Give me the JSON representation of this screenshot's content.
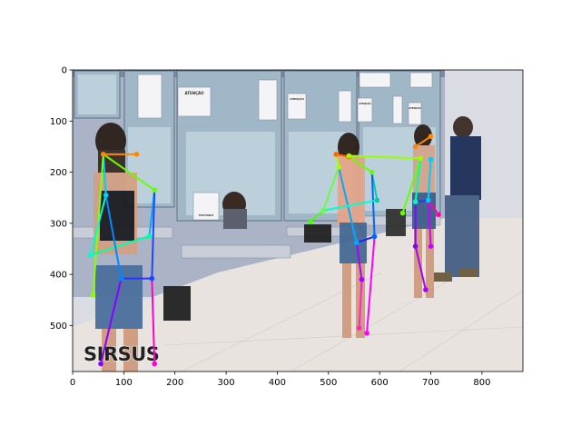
{
  "chart_data": {
    "type": "image-with-pose-overlay",
    "xlim": [
      0,
      880
    ],
    "ylim": [
      590,
      0
    ],
    "x_ticks": [
      0,
      100,
      200,
      300,
      400,
      500,
      600,
      700,
      800
    ],
    "y_ticks": [
      0,
      100,
      200,
      300,
      400,
      500
    ],
    "grid": false,
    "photo": {
      "posters": [
        "ATENÇÃO",
        "ATENÇÃO",
        "ATENÇÃO",
        "FECHADO",
        "ATENÇÃO"
      ],
      "logo": "SIRSUS"
    },
    "keypoint_color": "#1f1fff",
    "skeletons": [
      {
        "keypoints": [
          [
            60,
            165
          ],
          [
            125,
            165
          ],
          [
            65,
            245
          ],
          [
            160,
            235
          ],
          [
            95,
            408
          ],
          [
            155,
            408
          ],
          [
            40,
            440
          ],
          [
            35,
            362
          ],
          [
            150,
            325
          ],
          [
            55,
            575
          ],
          [
            160,
            575
          ]
        ],
        "edges": [
          {
            "from": 0,
            "to": 1,
            "color": "#ff8800"
          },
          {
            "from": 0,
            "to": 2,
            "color": "#00ccff"
          },
          {
            "from": 0,
            "to": 3,
            "color": "#66ff00"
          },
          {
            "from": 0,
            "to": 6,
            "color": "#88ff00"
          },
          {
            "from": 2,
            "to": 7,
            "color": "#00ffcc"
          },
          {
            "from": 7,
            "to": 8,
            "color": "#00ffaa"
          },
          {
            "from": 3,
            "to": 8,
            "color": "#00aaff"
          },
          {
            "from": 2,
            "to": 4,
            "color": "#0088ff"
          },
          {
            "from": 3,
            "to": 5,
            "color": "#2244ff"
          },
          {
            "from": 4,
            "to": 5,
            "color": "#3333ff"
          },
          {
            "from": 4,
            "to": 9,
            "color": "#8800ff"
          },
          {
            "from": 5,
            "to": 10,
            "color": "#ff00cc"
          }
        ]
      },
      {
        "keypoints": [
          [
            515,
            165
          ],
          [
            540,
            170
          ],
          [
            520,
            190
          ],
          [
            585,
            200
          ],
          [
            595,
            255
          ],
          [
            465,
            297
          ],
          [
            490,
            275
          ],
          [
            555,
            338
          ],
          [
            590,
            326
          ],
          [
            565,
            410
          ],
          [
            560,
            505
          ],
          [
            575,
            515
          ]
        ],
        "edges": [
          {
            "from": 0,
            "to": 1,
            "color": "#ff6600"
          },
          {
            "from": 0,
            "to": 2,
            "color": "#aaff00"
          },
          {
            "from": 1,
            "to": 3,
            "color": "#66ff00"
          },
          {
            "from": 2,
            "to": 6,
            "color": "#66ff44"
          },
          {
            "from": 6,
            "to": 5,
            "color": "#44ff00"
          },
          {
            "from": 3,
            "to": 4,
            "color": "#00ccaa"
          },
          {
            "from": 2,
            "to": 7,
            "color": "#00aaff"
          },
          {
            "from": 3,
            "to": 8,
            "color": "#0066ff"
          },
          {
            "from": 7,
            "to": 8,
            "color": "#2222ff"
          },
          {
            "from": 7,
            "to": 9,
            "color": "#aa00ff"
          },
          {
            "from": 8,
            "to": 11,
            "color": "#ff00ff"
          },
          {
            "from": 9,
            "to": 10,
            "color": "#ff22cc"
          },
          {
            "from": 4,
            "to": 6,
            "color": "#00ffcc"
          }
        ]
      },
      {
        "keypoints": [
          [
            670,
            150
          ],
          [
            700,
            130
          ],
          [
            540,
            168
          ],
          [
            680,
            173
          ],
          [
            700,
            175
          ],
          [
            645,
            280
          ],
          [
            670,
            258
          ],
          [
            695,
            255
          ],
          [
            715,
            283
          ],
          [
            670,
            345
          ],
          [
            700,
            345
          ],
          [
            690,
            430
          ]
        ],
        "edges": [
          {
            "from": 0,
            "to": 1,
            "color": "#ff8800"
          },
          {
            "from": 2,
            "to": 3,
            "color": "#99ff00"
          },
          {
            "from": 3,
            "to": 5,
            "color": "#66ff00"
          },
          {
            "from": 4,
            "to": 7,
            "color": "#00ccff"
          },
          {
            "from": 3,
            "to": 6,
            "color": "#00ffaa"
          },
          {
            "from": 6,
            "to": 7,
            "color": "#3333ff"
          },
          {
            "from": 6,
            "to": 9,
            "color": "#8800ff"
          },
          {
            "from": 7,
            "to": 10,
            "color": "#cc00ff"
          },
          {
            "from": 7,
            "to": 8,
            "color": "#ff00aa"
          },
          {
            "from": 9,
            "to": 11,
            "color": "#aa00ff"
          }
        ]
      }
    ]
  }
}
